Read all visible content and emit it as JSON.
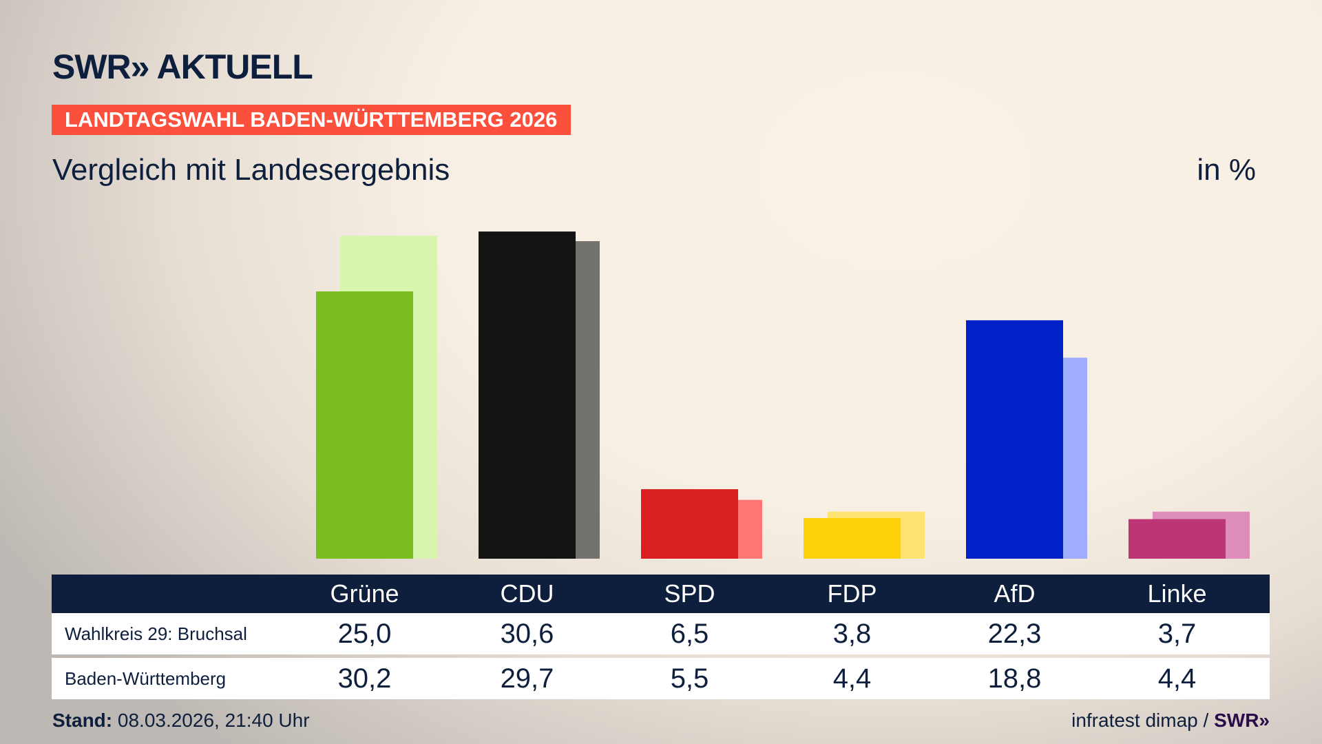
{
  "header": {
    "logo": "SWR» AKTUELL",
    "banner": "LANDTAGSWAHL BADEN-WÜRTTEMBERG 2026",
    "subtitle": "Vergleich mit Landesergebnis",
    "unit": "in %"
  },
  "chart_data": {
    "type": "bar",
    "categories": [
      "Grüne",
      "CDU",
      "SPD",
      "FDP",
      "AfD",
      "Linke"
    ],
    "series": [
      {
        "name": "Wahlkreis 29: Bruchsal",
        "values": [
          25.0,
          30.6,
          6.5,
          3.8,
          22.3,
          3.7
        ],
        "colors": [
          "#7abd1e",
          "#131313",
          "#d91f1f",
          "#ffd10a",
          "#0020c8",
          "#bc3575"
        ]
      },
      {
        "name": "Baden-Württemberg",
        "values": [
          30.2,
          29.7,
          5.5,
          4.4,
          18.8,
          4.4
        ],
        "colors": [
          "#d7f5ad",
          "#74726f",
          "#ff7673",
          "#ffe372",
          "#a0adff",
          "#de8cba"
        ]
      }
    ],
    "value_labels": [
      [
        "25,0",
        "30,6",
        "6,5",
        "3,8",
        "22,3",
        "3,7"
      ],
      [
        "30,2",
        "29,7",
        "5,5",
        "4,4",
        "18,8",
        "4,4"
      ]
    ],
    "grid": false
  },
  "footer": {
    "stand_label": "Stand:",
    "stand_value": "08.03.2026, 21:40 Uhr",
    "source": "infratest dimap / ",
    "source_logo": "SWR»"
  }
}
